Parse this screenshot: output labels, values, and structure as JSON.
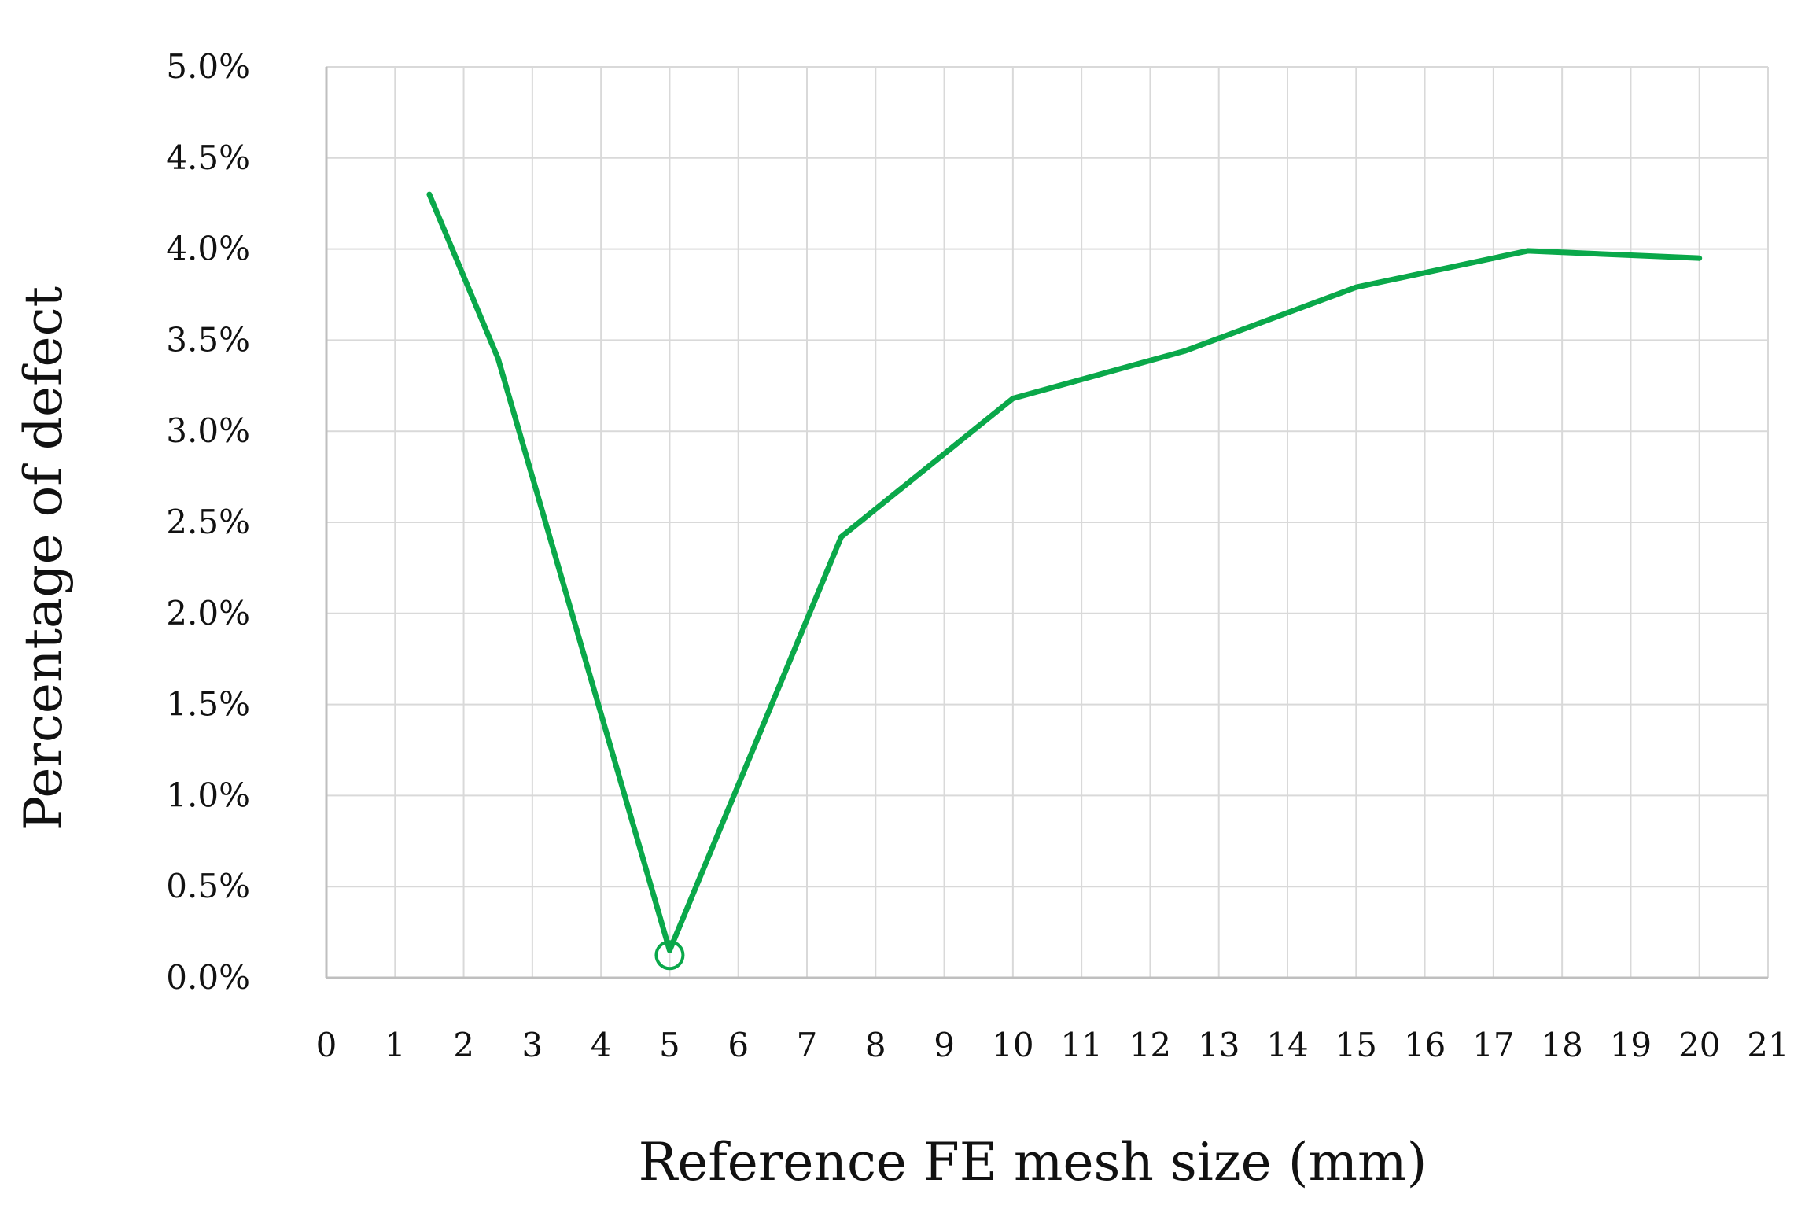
{
  "chart_data": {
    "type": "line",
    "title": "",
    "xlabel": "Reference FE mesh size (mm)",
    "ylabel": "Percentage of defect",
    "xlim": [
      0,
      21
    ],
    "ylim": [
      0,
      5.0
    ],
    "grid": true,
    "x_ticks": [
      "0",
      "1",
      "2",
      "3",
      "4",
      "5",
      "6",
      "7",
      "8",
      "9",
      "10",
      "11",
      "12",
      "13",
      "14",
      "15",
      "16",
      "17",
      "18",
      "19",
      "20",
      "21"
    ],
    "y_ticks": [
      "0.0%",
      "0.5%",
      "1.0%",
      "1.5%",
      "2.0%",
      "2.5%",
      "3.0%",
      "3.5%",
      "4.0%",
      "4.5%",
      "5.0%"
    ],
    "series": [
      {
        "x": [
          1.5,
          2.5,
          5,
          7.5,
          10,
          12.5,
          15,
          17.5,
          20
        ],
        "y": [
          4.3,
          3.4,
          0.15,
          2.42,
          3.18,
          3.44,
          3.79,
          3.99,
          3.95
        ],
        "color": "#0aa84a"
      }
    ],
    "highlight_point": {
      "x": 5,
      "y": 0.15
    }
  }
}
